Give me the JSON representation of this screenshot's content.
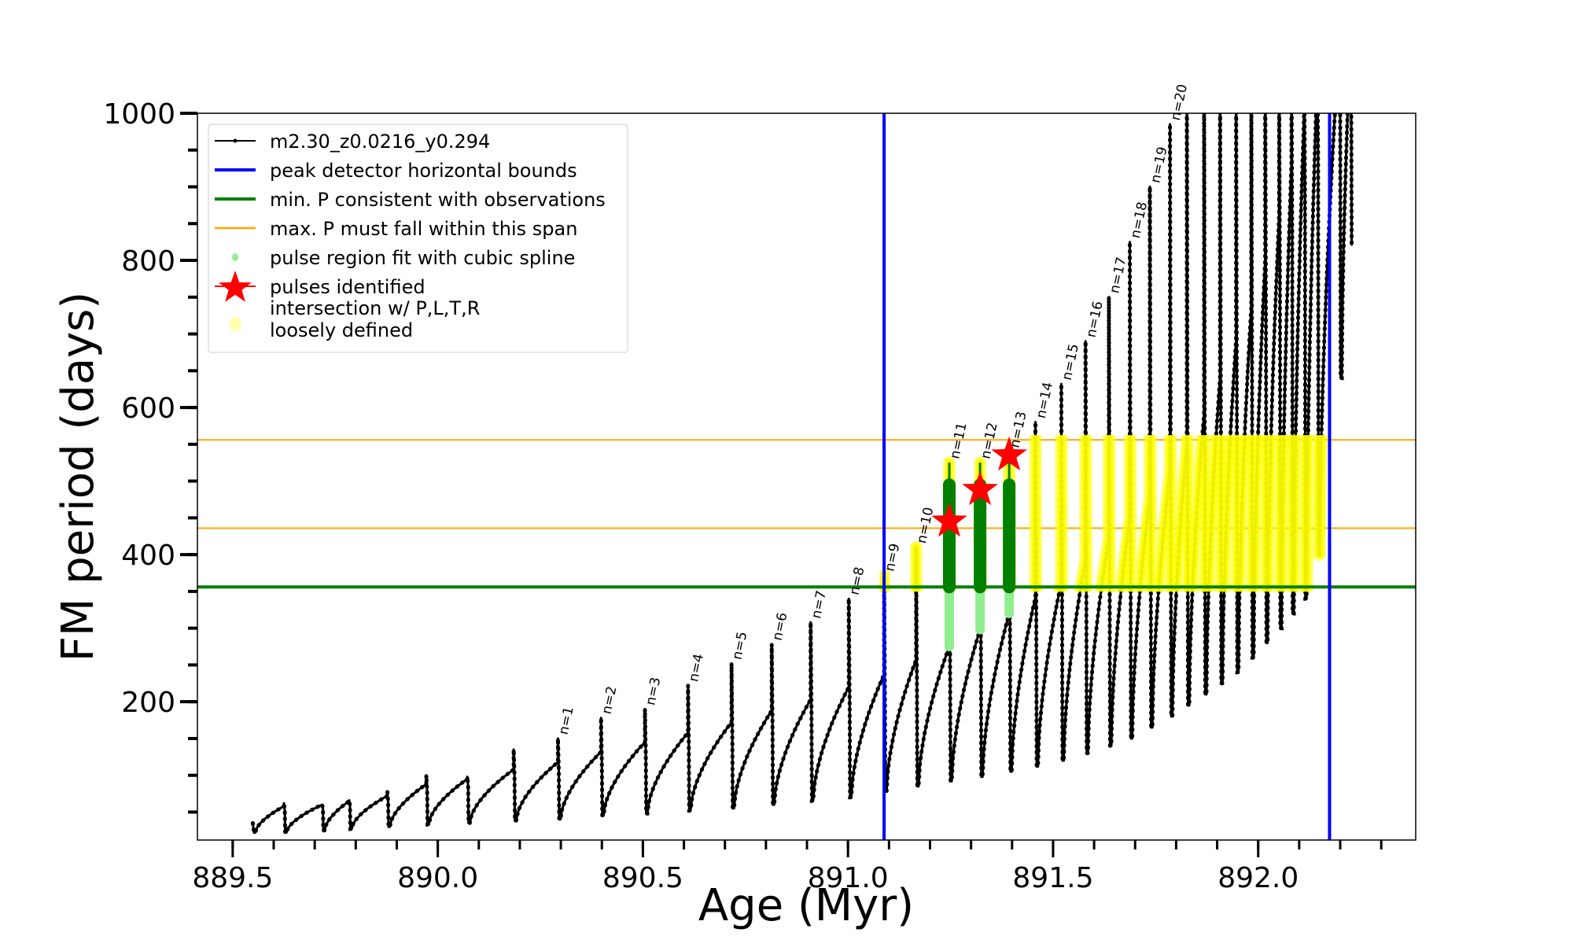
{
  "chart_data": {
    "type": "line",
    "title": "",
    "xlabel": "Age (Myr)",
    "ylabel": "FM period (days)",
    "xlim": [
      889.414,
      892.384
    ],
    "ylim": [
      12,
      1000
    ],
    "xticks": [
      "889.5",
      "890.0",
      "890.5",
      "891.0",
      "891.5",
      "892.0"
    ],
    "xtick_values": [
      889.5,
      890.0,
      890.5,
      891.0,
      891.5,
      892.0
    ],
    "yticks": [
      "200",
      "400",
      "600",
      "800",
      "1000"
    ],
    "ytick_values": [
      200,
      400,
      600,
      800,
      1000
    ],
    "grid": false,
    "legend_placement": "top-left",
    "legend": [
      {
        "label": "m2.30_z0.0216_y0.294",
        "kind": "line-marker",
        "color": "#000000"
      },
      {
        "label": "peak detector horizontal bounds",
        "kind": "line",
        "color": "#0000ff"
      },
      {
        "label": "min. P consistent with observations",
        "kind": "line",
        "color": "#008000"
      },
      {
        "label": "max. P must fall within this span",
        "kind": "line",
        "color": "#ffa500"
      },
      {
        "label": "pulse region fit with cubic spline",
        "kind": "dot",
        "color": "#90ee90"
      },
      {
        "label": "pulses identified",
        "kind": "star",
        "color": "#ff0000"
      },
      {
        "label": "intersection w/ P,L,T,R",
        "label2": "loosely defined",
        "kind": "dot",
        "color": "#ffffb0"
      }
    ],
    "series": {
      "track_start": {
        "age": 889.549,
        "value": 35,
        "min": 22
      },
      "pulse_age": [
        889.625,
        889.718,
        889.784,
        889.877,
        889.972,
        890.072,
        890.185,
        890.293,
        890.398,
        890.505,
        890.61,
        890.716,
        890.814,
        890.909,
        891.002,
        891.088,
        891.166,
        891.247,
        891.322,
        891.393,
        891.457,
        891.52,
        891.579,
        891.636,
        891.687,
        891.736,
        891.785,
        891.826,
        891.868,
        891.907,
        891.946,
        891.983,
        892.017,
        892.051,
        892.081,
        892.112,
        892.144,
        892.198,
        892.225
      ],
      "period_before_pulse": [
        58,
        60,
        65,
        72,
        88,
        95,
        108,
        118,
        132,
        145,
        158,
        172,
        188,
        203,
        220,
        237,
        257,
        275,
        298,
        320,
        342,
        362,
        392,
        422,
        450,
        480,
        512,
        550,
        590,
        640,
        690,
        735,
        800,
        860,
        930,
        1000,
        1050,
        1100,
        1100
      ],
      "pulse_peak_period": [
        62,
        60,
        66,
        78,
        100,
        98,
        135,
        150,
        178,
        190,
        222,
        252,
        278,
        308,
        340,
        372,
        410,
        525,
        525,
        540,
        580,
        632,
        690,
        750,
        825,
        900,
        985,
        1100,
        1100,
        1100,
        1100,
        1100,
        1100,
        1100,
        1100,
        1100,
        1100,
        1100,
        1100
      ],
      "period_min_after_pulse": [
        22,
        25,
        27,
        30,
        33,
        35,
        38,
        40,
        45,
        48,
        52,
        55,
        60,
        65,
        70,
        78,
        85,
        92,
        98,
        105,
        112,
        120,
        130,
        140,
        150,
        165,
        180,
        195,
        210,
        225,
        240,
        260,
        280,
        300,
        320,
        340,
        400,
        640,
        820
      ]
    },
    "pulse_labels": [
      {
        "text": "n=1",
        "index": 7
      },
      {
        "text": "n=2",
        "index": 8
      },
      {
        "text": "n=3",
        "index": 9
      },
      {
        "text": "n=4",
        "index": 10
      },
      {
        "text": "n=5",
        "index": 11
      },
      {
        "text": "n=6",
        "index": 12
      },
      {
        "text": "n=7",
        "index": 13
      },
      {
        "text": "n=8",
        "index": 14
      },
      {
        "text": "n=9",
        "index": 15
      },
      {
        "text": "n=10",
        "index": 16
      },
      {
        "text": "n=11",
        "index": 17
      },
      {
        "text": "n=12",
        "index": 18
      },
      {
        "text": "n=13",
        "index": 19
      },
      {
        "text": "n=14",
        "index": 20
      },
      {
        "text": "n=15",
        "index": 21
      },
      {
        "text": "n=16",
        "index": 22
      },
      {
        "text": "n=17",
        "index": 23
      },
      {
        "text": "n=18",
        "index": 24
      },
      {
        "text": "n=19",
        "index": 25
      },
      {
        "text": "n=20",
        "index": 26
      }
    ],
    "peak_detector_bounds": [
      891.088,
      892.174
    ],
    "min_period_observed": 356,
    "max_period_span": [
      436,
      556
    ],
    "pulses_identified": [
      {
        "age": 891.247,
        "period": 445
      },
      {
        "age": 891.322,
        "period": 488
      },
      {
        "age": 891.393,
        "period": 535
      }
    ],
    "spline_fit_pulse_indices": [
      17,
      18,
      19
    ],
    "spline_fit_top": 495,
    "colors": {
      "track": "#000000",
      "bounds": "#0000ff",
      "min_p": "#008000",
      "max_p": "#ffa500",
      "spline": "#008000",
      "spline_light": "#90ee90",
      "star": "#ff0000",
      "intersection": "#ffff00"
    }
  }
}
